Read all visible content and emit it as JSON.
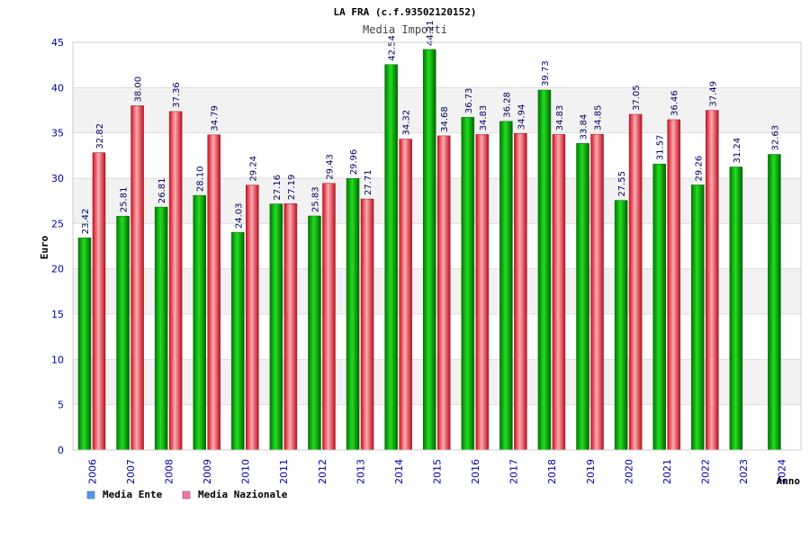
{
  "chart_data": {
    "type": "bar",
    "title": "LA FRA (c.f.93502120152)",
    "subtitle": "Media Importi",
    "xlabel": "Anno",
    "ylabel": "Euro",
    "ylim": [
      0,
      45
    ],
    "yticks": [
      0,
      5,
      10,
      15,
      20,
      25,
      30,
      35,
      40,
      45
    ],
    "categories": [
      "2006",
      "2007",
      "2008",
      "2009",
      "2010",
      "2011",
      "2012",
      "2013",
      "2014",
      "2015",
      "2016",
      "2017",
      "2018",
      "2019",
      "2020",
      "2021",
      "2022",
      "2023",
      "2024"
    ],
    "series": [
      {
        "name": "Media Ente",
        "color": "#00aa00",
        "values": [
          23.42,
          25.81,
          26.81,
          28.1,
          24.03,
          27.16,
          25.83,
          29.96,
          42.54,
          44.21,
          36.73,
          36.28,
          39.73,
          33.84,
          27.55,
          31.57,
          29.26,
          31.24,
          32.63
        ],
        "labels": [
          "23.42",
          "25.81",
          "26.81",
          "28.10",
          "24.03",
          "27.16",
          "25.83",
          "29.96",
          "42.54",
          "44.21",
          "36.73",
          "36.28",
          "39.73",
          "33.84",
          "27.55",
          "31.57",
          "29.26",
          "31.24",
          "32.63"
        ]
      },
      {
        "name": "Media Nazionale",
        "color": "#dd2233",
        "values": [
          32.82,
          38.0,
          37.36,
          34.79,
          29.24,
          27.19,
          29.43,
          27.71,
          34.32,
          34.68,
          34.83,
          34.94,
          34.83,
          34.85,
          37.05,
          36.46,
          37.49,
          null,
          null
        ],
        "labels": [
          "32.82",
          "38.00",
          "37.36",
          "34.79",
          "29.24",
          "27.19",
          "29.43",
          "27.71",
          "34.32",
          "34.68",
          "34.83",
          "34.94",
          "34.83",
          "34.85",
          "37.05",
          "36.46",
          "37.49",
          null,
          null
        ]
      }
    ],
    "legend": [
      {
        "label": "Media Ente",
        "color": "#5599ee"
      },
      {
        "label": "Media Nazionale",
        "color": "#ee77aa"
      }
    ],
    "grid": true
  }
}
